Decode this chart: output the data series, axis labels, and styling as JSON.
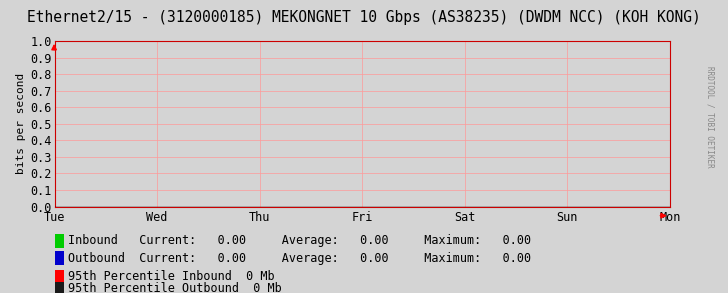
{
  "title": "Ethernet2/15 - (3120000185) MEKONGNET 10 Gbps (AS38235) (DWDM NCC) (KOH KONG)",
  "ylabel": "bits per second",
  "xlim": [
    0,
    6
  ],
  "ylim": [
    0,
    1.0
  ],
  "yticks": [
    0.0,
    0.1,
    0.2,
    0.3,
    0.4,
    0.5,
    0.6,
    0.7,
    0.8,
    0.9,
    1.0
  ],
  "xtick_labels": [
    "Tue",
    "Wed",
    "Thu",
    "Fri",
    "Sat",
    "Sun",
    "Mon"
  ],
  "xtick_positions": [
    0,
    1,
    2,
    3,
    4,
    5,
    6
  ],
  "bg_color": "#d4d4d4",
  "plot_bg_color": "#d4d4d4",
  "grid_color": "#ff9999",
  "title_fontsize": 10.5,
  "axis_fontsize": 8,
  "tick_fontsize": 8.5,
  "legend_fontsize": 8.5,
  "inbound_color": "#00cc00",
  "outbound_color": "#0000cc",
  "watermark": "RRDTOOL / TOBI OETIKER",
  "legend1_label": "Inbound",
  "legend1_current": "0.00",
  "legend1_average": "0.00",
  "legend1_maximum": "0.00",
  "legend2_label": "Outbound",
  "legend2_current": "0.00",
  "legend2_average": "0.00",
  "legend2_maximum": "0.00",
  "legend3_label": "95th Percentile Inbound  0 Mb",
  "legend3_color": "#ff0000",
  "legend4_label": "95th Percentile Outbound  0 Mb",
  "legend4_color": "#1a1a1a",
  "spine_color": "#cc0000",
  "zero_line_color": "#000000",
  "right_margin_color": "#c8c8c8"
}
